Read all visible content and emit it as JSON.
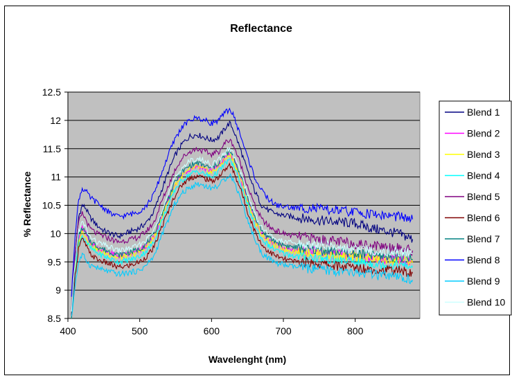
{
  "chart_data": {
    "type": "line",
    "title": "Reflectance",
    "xlabel": "Wavelenght (nm)",
    "ylabel": "% Reflectance",
    "xlim": [
      400,
      890
    ],
    "ylim": [
      8.5,
      12.5
    ],
    "x_ticks": [
      "400",
      "500",
      "600",
      "700",
      "800"
    ],
    "y_ticks": [
      "8.5",
      "9",
      "9.5",
      "10",
      "10.5",
      "11",
      "11.5",
      "12",
      "12.5"
    ],
    "grid": "horizontal",
    "legend_position": "right",
    "plot_background": "#c0c0c0",
    "x": [
      405,
      410,
      415,
      420,
      425,
      430,
      440,
      450,
      460,
      470,
      480,
      490,
      500,
      510,
      520,
      530,
      540,
      550,
      560,
      570,
      580,
      590,
      600,
      610,
      620,
      625,
      630,
      640,
      650,
      660,
      670,
      680,
      690,
      700,
      710,
      720,
      740,
      760,
      780,
      800,
      820,
      840,
      860,
      880
    ],
    "series": [
      {
        "name": "Blend 1",
        "color": "#000080",
        "values": [
          8.6,
          9.6,
          10.3,
          10.5,
          10.45,
          10.3,
          10.15,
          10.05,
          10.0,
          9.95,
          10.0,
          10.05,
          10.1,
          10.2,
          10.4,
          10.75,
          11.1,
          11.4,
          11.6,
          11.72,
          11.75,
          11.7,
          11.65,
          11.7,
          11.88,
          11.95,
          11.85,
          11.5,
          11.1,
          10.75,
          10.5,
          10.4,
          10.35,
          10.32,
          10.3,
          10.28,
          10.25,
          10.22,
          10.2,
          10.18,
          10.1,
          10.05,
          10.0,
          9.9
        ]
      },
      {
        "name": "Blend 2",
        "color": "#ff00ff",
        "values": [
          8.5,
          9.4,
          9.9,
          10.1,
          10.0,
          9.85,
          9.75,
          9.7,
          9.65,
          9.6,
          9.62,
          9.65,
          9.7,
          9.8,
          9.95,
          10.3,
          10.6,
          10.9,
          11.05,
          11.15,
          11.2,
          11.15,
          11.1,
          11.2,
          11.35,
          11.4,
          11.32,
          11.0,
          10.6,
          10.25,
          10.0,
          9.88,
          9.8,
          9.75,
          9.72,
          9.7,
          9.68,
          9.65,
          9.62,
          9.6,
          9.58,
          9.55,
          9.55,
          9.5
        ]
      },
      {
        "name": "Blend 3",
        "color": "#ffff00",
        "values": [
          8.5,
          9.35,
          9.85,
          10.05,
          9.95,
          9.82,
          9.72,
          9.67,
          9.62,
          9.57,
          9.6,
          9.63,
          9.68,
          9.78,
          9.93,
          10.28,
          10.58,
          10.88,
          11.03,
          11.13,
          11.18,
          11.13,
          11.08,
          11.18,
          11.33,
          11.38,
          11.3,
          10.98,
          10.58,
          10.23,
          9.98,
          9.86,
          9.78,
          9.73,
          9.7,
          9.68,
          9.66,
          9.63,
          9.6,
          9.58,
          9.56,
          9.53,
          9.53,
          9.48
        ]
      },
      {
        "name": "Blend 4",
        "color": "#00ffff",
        "values": [
          8.5,
          9.3,
          9.8,
          9.95,
          9.88,
          9.76,
          9.66,
          9.6,
          9.55,
          9.5,
          9.52,
          9.55,
          9.6,
          9.7,
          9.85,
          10.2,
          10.5,
          10.8,
          10.95,
          11.05,
          11.1,
          11.05,
          11.0,
          11.1,
          11.25,
          11.3,
          11.22,
          10.9,
          10.5,
          10.15,
          9.9,
          9.78,
          9.7,
          9.65,
          9.62,
          9.6,
          9.58,
          9.55,
          9.52,
          9.5,
          9.48,
          9.45,
          9.45,
          9.4
        ]
      },
      {
        "name": "Blend 5",
        "color": "#800080",
        "values": [
          8.7,
          9.7,
          10.2,
          10.35,
          10.25,
          10.1,
          10.0,
          9.95,
          9.9,
          9.85,
          9.88,
          9.9,
          9.95,
          10.05,
          10.2,
          10.55,
          10.85,
          11.15,
          11.35,
          11.45,
          11.5,
          11.45,
          11.4,
          11.45,
          11.62,
          11.65,
          11.58,
          11.25,
          10.85,
          10.5,
          10.25,
          10.12,
          10.05,
          10.0,
          9.97,
          9.95,
          9.92,
          9.88,
          9.85,
          9.82,
          9.8,
          9.78,
          9.75,
          9.7
        ]
      },
      {
        "name": "Blend 6",
        "color": "#800000",
        "values": [
          8.5,
          9.25,
          9.75,
          9.9,
          9.8,
          9.65,
          9.55,
          9.5,
          9.45,
          9.4,
          9.42,
          9.45,
          9.5,
          9.6,
          9.75,
          10.1,
          10.4,
          10.7,
          10.88,
          10.98,
          11.02,
          10.98,
          10.92,
          11.0,
          11.15,
          11.2,
          11.12,
          10.8,
          10.4,
          10.05,
          9.8,
          9.68,
          9.6,
          9.55,
          9.52,
          9.5,
          9.48,
          9.45,
          9.42,
          9.4,
          9.38,
          9.35,
          9.35,
          9.3
        ]
      },
      {
        "name": "Blend 7",
        "color": "#008080",
        "values": [
          8.5,
          9.45,
          9.95,
          10.1,
          10.0,
          9.88,
          9.78,
          9.72,
          9.67,
          9.62,
          9.65,
          9.68,
          9.73,
          9.83,
          9.98,
          10.33,
          10.63,
          10.93,
          11.1,
          11.2,
          11.25,
          11.2,
          11.15,
          11.25,
          11.4,
          11.45,
          11.37,
          11.05,
          10.65,
          10.3,
          10.05,
          9.92,
          9.85,
          9.8,
          9.77,
          9.75,
          9.72,
          9.7,
          9.67,
          9.65,
          9.62,
          9.6,
          9.6,
          9.55
        ]
      },
      {
        "name": "Blend 8",
        "color": "#0000ff",
        "values": [
          8.9,
          10.0,
          10.6,
          10.8,
          10.75,
          10.65,
          10.55,
          10.45,
          10.35,
          10.3,
          10.32,
          10.35,
          10.4,
          10.5,
          10.7,
          11.05,
          11.4,
          11.7,
          11.9,
          12.0,
          12.05,
          12.0,
          11.95,
          12.0,
          12.15,
          12.2,
          12.1,
          11.75,
          11.35,
          11.0,
          10.75,
          10.6,
          10.5,
          10.48,
          10.46,
          10.45,
          10.45,
          10.42,
          10.4,
          10.38,
          10.35,
          10.32,
          10.3,
          10.25
        ]
      },
      {
        "name": "Blend 9",
        "color": "#00ccff",
        "values": [
          8.5,
          9.1,
          9.5,
          9.62,
          9.55,
          9.45,
          9.4,
          9.35,
          9.32,
          9.28,
          9.3,
          9.32,
          9.35,
          9.45,
          9.6,
          9.95,
          10.25,
          10.55,
          10.72,
          10.82,
          10.88,
          10.85,
          10.8,
          10.85,
          10.98,
          11.05,
          10.95,
          10.65,
          10.25,
          9.9,
          9.65,
          9.55,
          9.48,
          9.45,
          9.42,
          9.4,
          9.38,
          9.35,
          9.32,
          9.3,
          9.28,
          9.25,
          9.22,
          9.18
        ]
      },
      {
        "name": "Blend 10",
        "color": "#ccffff",
        "values": [
          8.6,
          9.5,
          10.05,
          10.2,
          10.1,
          9.95,
          9.85,
          9.8,
          9.75,
          9.7,
          9.72,
          9.75,
          9.8,
          9.9,
          10.05,
          10.4,
          10.7,
          11.0,
          11.18,
          11.28,
          11.32,
          11.28,
          11.22,
          11.3,
          11.45,
          11.5,
          11.42,
          11.1,
          10.7,
          10.35,
          10.1,
          9.98,
          9.9,
          9.86,
          9.84,
          9.82,
          9.8,
          9.78,
          9.75,
          9.72,
          9.7,
          9.68,
          9.68,
          9.65
        ]
      }
    ]
  }
}
